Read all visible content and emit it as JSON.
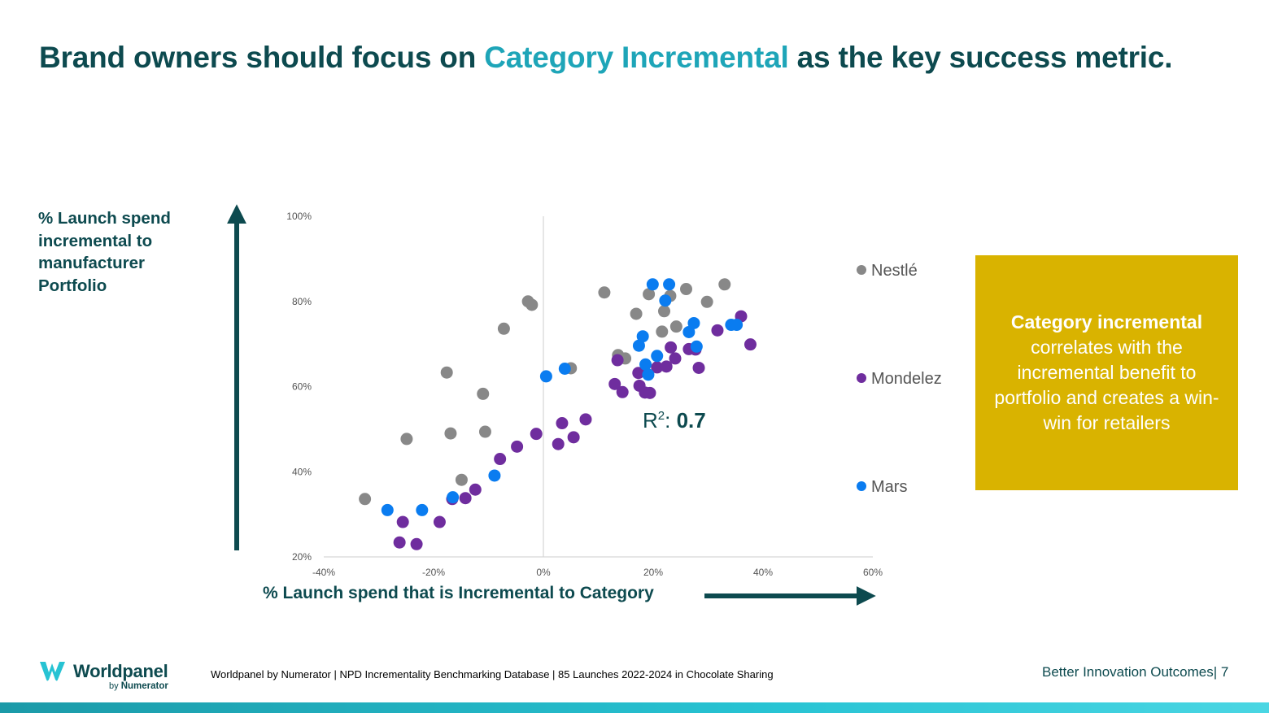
{
  "title": {
    "prefix": "Brand owners should focus on ",
    "highlight": "Category Incremental",
    "suffix": " as the key success metric."
  },
  "colors": {
    "dark_teal": "#0d4a4f",
    "highlight": "#1ea5b8",
    "callout_bg": "#d9b300"
  },
  "callout": {
    "bold": "Category incremental",
    "rest": "correlates with the incremental benefit to portfolio and creates a win-win for retailers"
  },
  "footer": {
    "logo_name": "Worldpanel",
    "logo_by": "by",
    "logo_brand": "Numerator",
    "source": "Worldpanel by Numerator | NPD Incrementality Benchmarking Database | 85 Launches 2022-2024 in Chocolate Sharing",
    "page_ref": "Better Innovation Outcomes| 7"
  },
  "chart_data": {
    "type": "scatter",
    "title": "",
    "xlabel": "% Launch spend that is Incremental to Category",
    "ylabel": "% Launch spend incremental to manufacturer Portfolio",
    "xlim": [
      -40,
      60
    ],
    "ylim": [
      20,
      100
    ],
    "xticks": [
      -40,
      -20,
      0,
      20,
      40,
      60
    ],
    "yticks": [
      20,
      40,
      60,
      80,
      100
    ],
    "x_tick_labels": [
      "-40%",
      "-20%",
      "0%",
      "20%",
      "40%",
      "60%"
    ],
    "y_tick_labels": [
      "20%",
      "40%",
      "60%",
      "80%",
      "100%"
    ],
    "legend_position": "right",
    "annotation": {
      "prefix": "R",
      "superscript": "2",
      "separator": ": ",
      "value": "0.7"
    },
    "series": [
      {
        "name": "Nestlé",
        "color": "#888888",
        "points": [
          [
            -32.5,
            33.6
          ],
          [
            -24.9,
            47.7
          ],
          [
            -17.6,
            63.3
          ],
          [
            -16.9,
            49
          ],
          [
            -14.9,
            38.1
          ],
          [
            -11,
            58.3
          ],
          [
            -10.6,
            49.4
          ],
          [
            -7.2,
            73.6
          ],
          [
            -2.8,
            80
          ],
          [
            -2.1,
            79.2
          ],
          [
            5,
            64.3
          ],
          [
            11.1,
            82.1
          ],
          [
            13.6,
            67.4
          ],
          [
            14.9,
            66.6
          ],
          [
            16.9,
            77.1
          ],
          [
            19.2,
            81.7
          ],
          [
            21.6,
            72.9
          ],
          [
            22,
            77.7
          ],
          [
            23.1,
            81.3
          ],
          [
            24.2,
            74.1
          ],
          [
            26,
            82.9
          ],
          [
            29.8,
            79.9
          ],
          [
            33,
            84
          ]
        ]
      },
      {
        "name": "Mondelez",
        "color": "#6f2d9e",
        "points": [
          [
            -26.2,
            23.4
          ],
          [
            -25.6,
            28.2
          ],
          [
            -23.1,
            23
          ],
          [
            -18.9,
            28.2
          ],
          [
            -16.6,
            33.6
          ],
          [
            -14.2,
            33.8
          ],
          [
            -12.4,
            35.8
          ],
          [
            -7.9,
            43
          ],
          [
            -4.8,
            45.9
          ],
          [
            -1.3,
            48.9
          ],
          [
            2.7,
            46.5
          ],
          [
            3.4,
            51.4
          ],
          [
            5.5,
            48.1
          ],
          [
            7.7,
            52.3
          ],
          [
            13,
            60.6
          ],
          [
            13.5,
            66.2
          ],
          [
            14.4,
            58.7
          ],
          [
            17.3,
            63.2
          ],
          [
            17.5,
            60.2
          ],
          [
            18.5,
            58.6
          ],
          [
            19.4,
            58.5
          ],
          [
            20.7,
            64.5
          ],
          [
            22.4,
            64.7
          ],
          [
            23.2,
            69.2
          ],
          [
            24,
            66.6
          ],
          [
            26.5,
            68.8
          ],
          [
            27.7,
            68.7
          ],
          [
            28.3,
            64.4
          ],
          [
            31.7,
            73.2
          ],
          [
            36,
            76.5
          ],
          [
            37.7,
            69.9
          ]
        ]
      },
      {
        "name": "Mars",
        "color": "#0a7cf0",
        "points": [
          [
            -28.4,
            31
          ],
          [
            -22.1,
            31
          ],
          [
            -16.5,
            34
          ],
          [
            -8.9,
            39.1
          ],
          [
            0.5,
            62.4
          ],
          [
            3.9,
            64.2
          ],
          [
            17.4,
            69.6
          ],
          [
            18.1,
            71.8
          ],
          [
            18.6,
            65.2
          ],
          [
            19.1,
            62.8
          ],
          [
            19.9,
            84
          ],
          [
            20.7,
            67.2
          ],
          [
            22.2,
            80.2
          ],
          [
            22.9,
            84
          ],
          [
            26.5,
            72.8
          ],
          [
            27.4,
            74.9
          ],
          [
            27.9,
            69.4
          ],
          [
            34.2,
            74.5
          ],
          [
            35.2,
            74.5
          ]
        ]
      }
    ]
  }
}
